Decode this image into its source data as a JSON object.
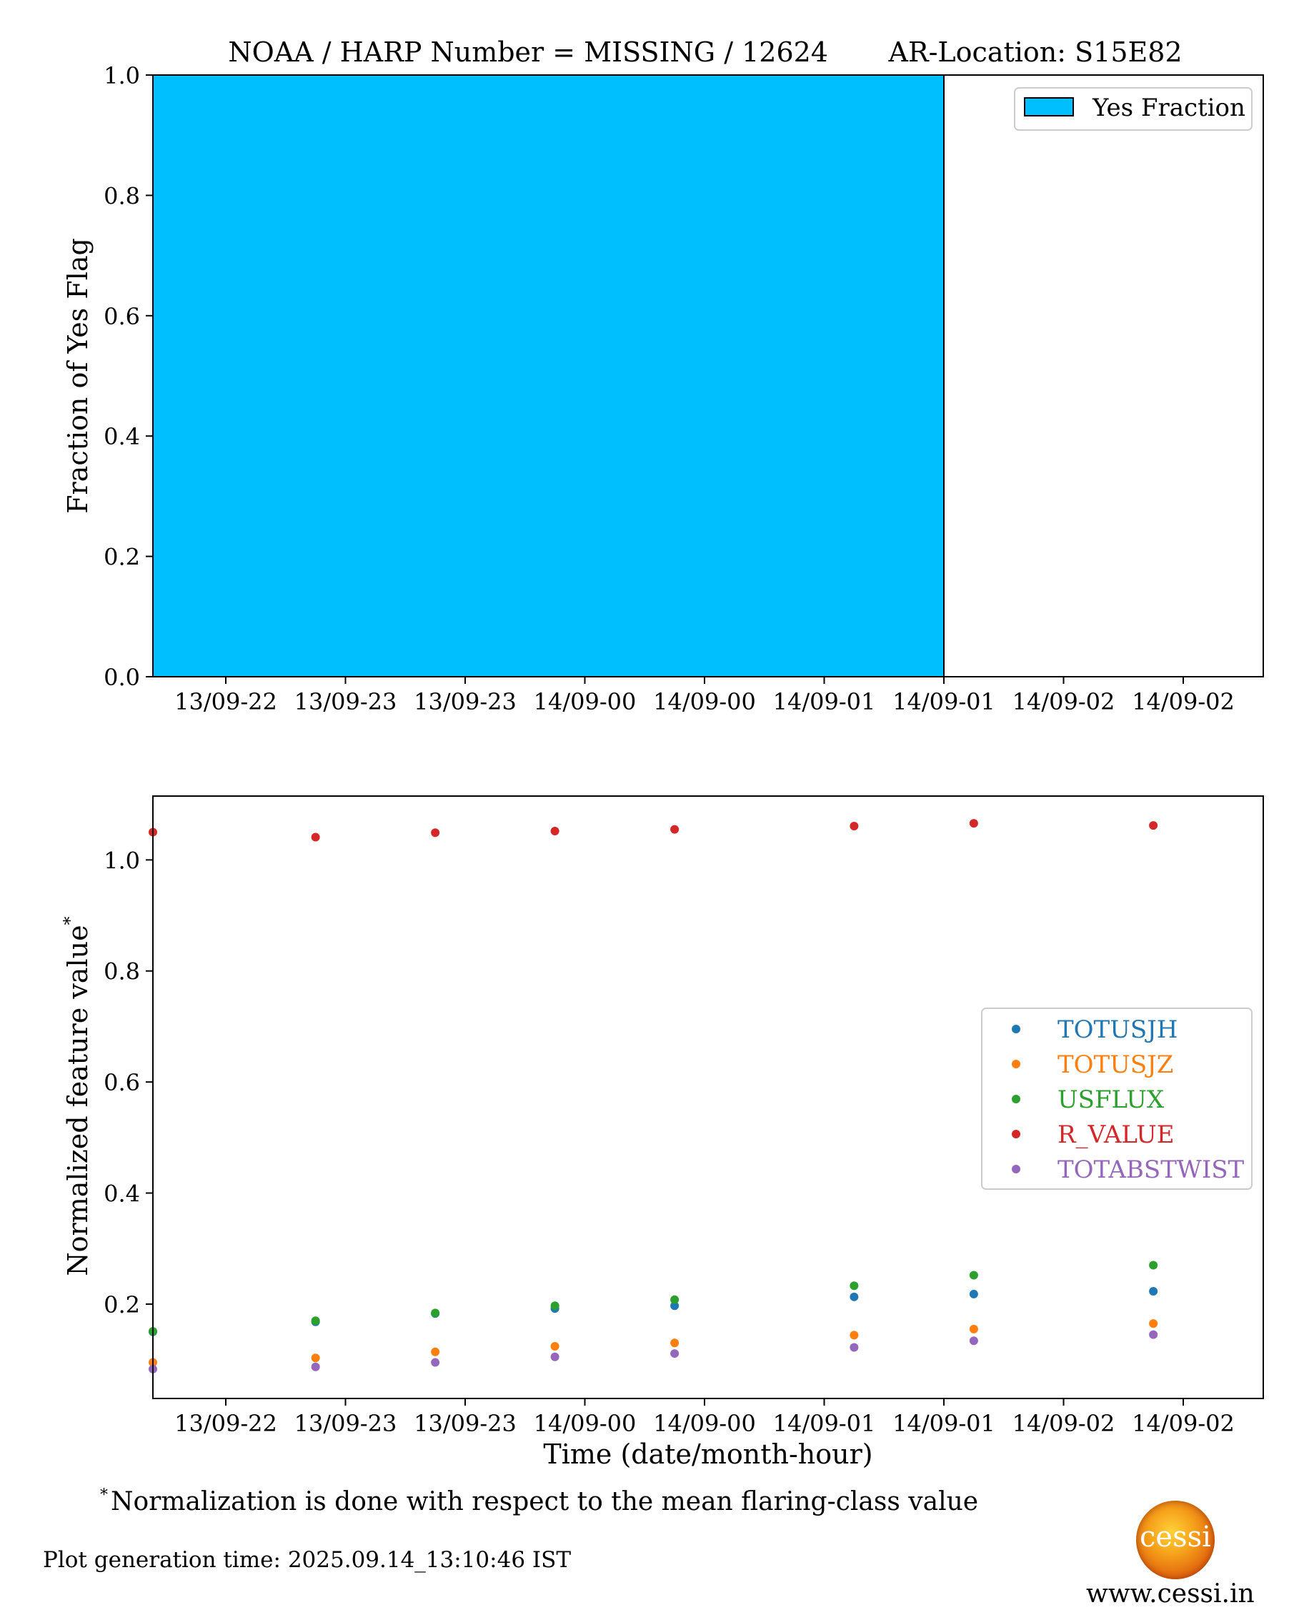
{
  "chart_data": [
    {
      "type": "bar",
      "title": "NOAA / HARP Number = MISSING / 12624       AR-Location: S15E82",
      "ylabel": "Fraction of Yes Flag",
      "xlabel": "",
      "ylim": [
        0,
        1.0
      ],
      "x_tick_labels": [
        "13/09-22",
        "13/09-23",
        "13/09-23",
        "14/09-00",
        "14/09-00",
        "14/09-01",
        "14/09-01",
        "14/09-02",
        "14/09-02"
      ],
      "y_tick_labels": [
        "0.0",
        "0.2",
        "0.4",
        "0.6",
        "0.8",
        "1.0"
      ],
      "series": [
        {
          "name": "Yes Fraction",
          "color": "#00bfff",
          "x_start": "13/09-21:24",
          "x_end": "14/09-02:48",
          "value": 1.0
        }
      ],
      "legend_position": "top-right",
      "grid": false
    },
    {
      "type": "scatter",
      "ylabel": "Normalized feature value",
      "ylabel_superscript": "*",
      "xlabel": "Time (date/month-hour)",
      "ylim": [
        0.03,
        1.115
      ],
      "y_ticks": [
        0.2,
        0.4,
        0.6,
        0.8,
        1.0
      ],
      "y_tick_labels": [
        "0.2",
        "0.4",
        "0.6",
        "0.8",
        "1.0"
      ],
      "x_tick_labels": [
        "13/09-22",
        "13/09-23",
        "13/09-23",
        "14/09-00",
        "14/09-00",
        "14/09-01",
        "14/09-01",
        "14/09-02",
        "14/09-02"
      ],
      "x_hours": [
        -0.6,
        0.6,
        1.4,
        2.2,
        3.0,
        4.2,
        5.0,
        6.2
      ],
      "series": [
        {
          "name": "TOTUSJH",
          "color": "#1f77b4",
          "values": [
            0.15,
            0.168,
            0.183,
            0.192,
            0.197,
            0.213,
            0.218,
            0.223
          ]
        },
        {
          "name": "TOTUSJZ",
          "color": "#ff7f0e",
          "values": [
            0.095,
            0.103,
            0.114,
            0.124,
            0.13,
            0.144,
            0.155,
            0.165
          ]
        },
        {
          "name": "USFLUX",
          "color": "#2ca02c",
          "values": [
            0.151,
            0.17,
            0.184,
            0.197,
            0.208,
            0.233,
            0.252,
            0.27
          ]
        },
        {
          "name": "R_VALUE",
          "color": "#d62728",
          "values": [
            1.05,
            1.041,
            1.049,
            1.052,
            1.055,
            1.061,
            1.066,
            1.062
          ]
        },
        {
          "name": "TOTABSTWIST",
          "color": "#9467bd",
          "values": [
            0.083,
            0.087,
            0.095,
            0.105,
            0.111,
            0.122,
            0.134,
            0.145
          ]
        }
      ],
      "legend_position": "center-right",
      "grid": false
    }
  ],
  "footnote": {
    "marker": "*",
    "text": "Normalization is done with respect to the mean flaring-class value"
  },
  "generation_time": "Plot generation time: 2025.09.14_13:10:46 IST",
  "logo": {
    "text": "cessi",
    "website": "www.cessi.in"
  }
}
